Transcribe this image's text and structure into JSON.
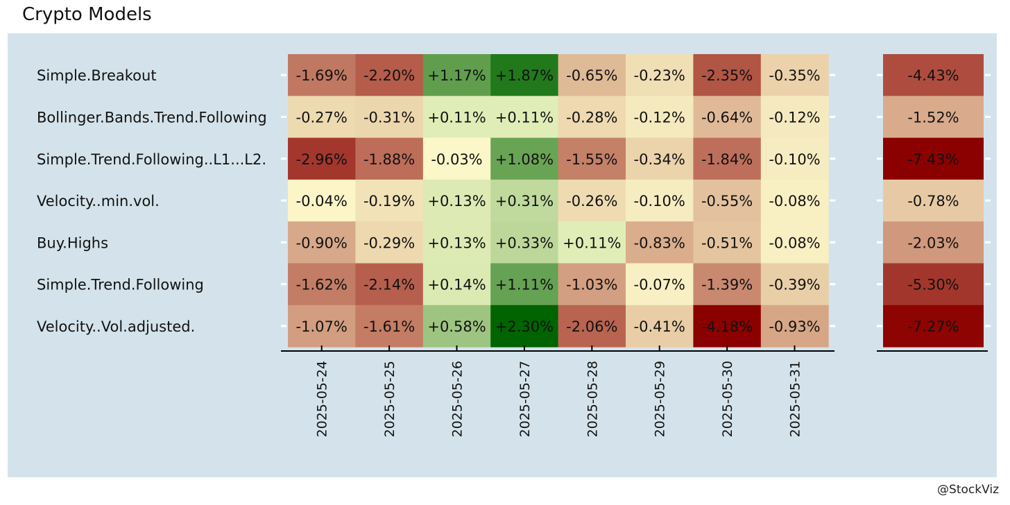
{
  "title": "Crypto Models",
  "credit": "@StockViz",
  "chart_data": [
    {
      "type": "heatmap",
      "title": "",
      "xlabel": "",
      "ylabel": "",
      "grid": false,
      "legend": "none",
      "x": [
        "2025-05-24",
        "2025-05-25",
        "2025-05-26",
        "2025-05-27",
        "2025-05-28",
        "2025-05-29",
        "2025-05-30",
        "2025-05-31"
      ],
      "y": [
        "Simple.Breakout",
        "Bollinger.Bands.Trend.Following",
        "Simple.Trend.Following..L1...L2.",
        "Velocity..min.vol.",
        "Buy.Highs",
        "Simple.Trend.Following",
        "Velocity..Vol.adjusted."
      ],
      "values": [
        [
          -1.69,
          -2.2,
          1.17,
          1.87,
          -0.65,
          -0.23,
          -2.35,
          -0.35
        ],
        [
          -0.27,
          -0.31,
          0.11,
          0.11,
          -0.28,
          -0.12,
          -0.64,
          -0.12
        ],
        [
          -2.96,
          -1.88,
          -0.03,
          1.08,
          -1.55,
          -0.34,
          -1.84,
          -0.1
        ],
        [
          -0.04,
          -0.19,
          0.13,
          0.31,
          -0.26,
          -0.1,
          -0.55,
          -0.08
        ],
        [
          -0.9,
          -0.29,
          0.13,
          0.33,
          0.11,
          -0.83,
          -0.51,
          -0.08
        ],
        [
          -1.62,
          -2.14,
          0.14,
          1.11,
          -1.03,
          -0.07,
          -1.39,
          -0.39
        ],
        [
          -1.07,
          -1.61,
          0.58,
          2.3,
          -2.06,
          -0.41,
          -4.18,
          -0.93
        ]
      ],
      "labels": [
        [
          "-1.69%",
          "-2.20%",
          "+1.17%",
          "+1.87%",
          "-0.65%",
          "-0.23%",
          "-2.35%",
          "-0.35%"
        ],
        [
          "-0.27%",
          "-0.31%",
          "+0.11%",
          "+0.11%",
          "-0.28%",
          "-0.12%",
          "-0.64%",
          "-0.12%"
        ],
        [
          "-2.96%",
          "-1.88%",
          "-0.03%",
          "+1.08%",
          "-1.55%",
          "-0.34%",
          "-1.84%",
          "-0.10%"
        ],
        [
          "-0.04%",
          "-0.19%",
          "+0.13%",
          "+0.31%",
          "-0.26%",
          "-0.10%",
          "-0.55%",
          "-0.08%"
        ],
        [
          "-0.90%",
          "-0.29%",
          "+0.13%",
          "+0.33%",
          "+0.11%",
          "-0.83%",
          "-0.51%",
          "-0.08%"
        ],
        [
          "-1.62%",
          "-2.14%",
          "+0.14%",
          "+1.11%",
          "-1.03%",
          "-0.07%",
          "-1.39%",
          "-0.39%"
        ],
        [
          "-1.07%",
          "-1.61%",
          "+0.58%",
          "+2.30%",
          "-2.06%",
          "-0.41%",
          "-4.18%",
          "-0.93%"
        ]
      ],
      "colors": {
        "negative_max": "#8b0000",
        "neutral": "#ffffd0",
        "positive_max": "#006400"
      }
    },
    {
      "type": "heatmap",
      "title": "",
      "grid": false,
      "legend": "none",
      "values": [
        -4.43,
        -1.52,
        -7.43,
        -0.78,
        -2.03,
        -5.3,
        -7.27
      ],
      "labels": [
        "-4.43%",
        "-1.52%",
        "-7.43%",
        "-0.78%",
        "-2.03%",
        "-5.30%",
        "-7.27%"
      ],
      "colors": {
        "negative_max": "#8b0000",
        "neutral": "#ffffd0"
      }
    }
  ]
}
